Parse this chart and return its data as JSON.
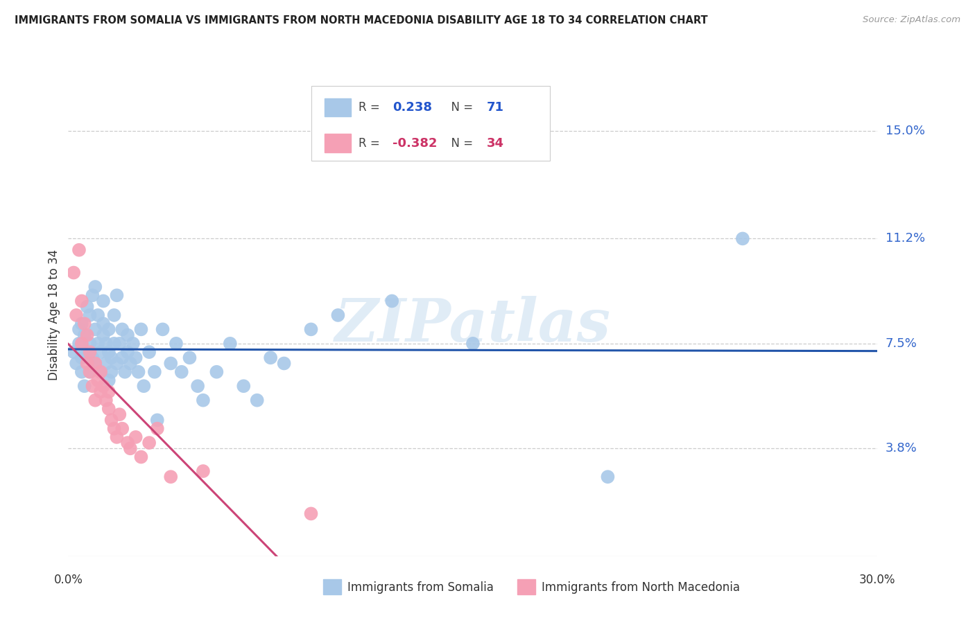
{
  "title": "IMMIGRANTS FROM SOMALIA VS IMMIGRANTS FROM NORTH MACEDONIA DISABILITY AGE 18 TO 34 CORRELATION CHART",
  "source": "Source: ZipAtlas.com",
  "ylabel": "Disability Age 18 to 34",
  "ytick_labels": [
    "15.0%",
    "11.2%",
    "7.5%",
    "3.8%"
  ],
  "ytick_values": [
    0.15,
    0.112,
    0.075,
    0.038
  ],
  "xlim": [
    0.0,
    0.3
  ],
  "ylim": [
    0.0,
    0.17
  ],
  "somalia_R": "0.238",
  "somalia_N": "71",
  "macedonia_R": "-0.382",
  "macedonia_N": "34",
  "somalia_color": "#a8c8e8",
  "somalia_line_color": "#2255aa",
  "macedonia_color": "#f5a0b5",
  "macedonia_line_color": "#cc4477",
  "watermark_text": "ZIPatlas",
  "somalia_points_x": [
    0.002,
    0.003,
    0.004,
    0.004,
    0.005,
    0.005,
    0.005,
    0.006,
    0.006,
    0.007,
    0.007,
    0.008,
    0.008,
    0.008,
    0.009,
    0.009,
    0.01,
    0.01,
    0.01,
    0.011,
    0.011,
    0.012,
    0.012,
    0.013,
    0.013,
    0.013,
    0.014,
    0.014,
    0.015,
    0.015,
    0.015,
    0.016,
    0.016,
    0.017,
    0.017,
    0.018,
    0.018,
    0.019,
    0.02,
    0.02,
    0.021,
    0.022,
    0.022,
    0.023,
    0.024,
    0.025,
    0.026,
    0.027,
    0.028,
    0.03,
    0.032,
    0.033,
    0.035,
    0.038,
    0.04,
    0.042,
    0.045,
    0.048,
    0.05,
    0.055,
    0.06,
    0.065,
    0.07,
    0.075,
    0.08,
    0.09,
    0.1,
    0.12,
    0.15,
    0.2,
    0.25
  ],
  "somalia_points_y": [
    0.072,
    0.068,
    0.075,
    0.08,
    0.065,
    0.07,
    0.082,
    0.06,
    0.078,
    0.088,
    0.072,
    0.075,
    0.065,
    0.085,
    0.07,
    0.092,
    0.068,
    0.08,
    0.095,
    0.075,
    0.085,
    0.072,
    0.065,
    0.078,
    0.082,
    0.09,
    0.068,
    0.075,
    0.062,
    0.072,
    0.08,
    0.07,
    0.065,
    0.075,
    0.085,
    0.068,
    0.092,
    0.075,
    0.07,
    0.08,
    0.065,
    0.072,
    0.078,
    0.068,
    0.075,
    0.07,
    0.065,
    0.08,
    0.06,
    0.072,
    0.065,
    0.048,
    0.08,
    0.068,
    0.075,
    0.065,
    0.07,
    0.06,
    0.055,
    0.065,
    0.075,
    0.06,
    0.055,
    0.07,
    0.068,
    0.08,
    0.085,
    0.09,
    0.075,
    0.028,
    0.112
  ],
  "macedonia_points_x": [
    0.002,
    0.003,
    0.004,
    0.005,
    0.005,
    0.006,
    0.007,
    0.007,
    0.008,
    0.008,
    0.009,
    0.01,
    0.01,
    0.011,
    0.012,
    0.012,
    0.013,
    0.014,
    0.015,
    0.015,
    0.016,
    0.017,
    0.018,
    0.019,
    0.02,
    0.022,
    0.023,
    0.025,
    0.027,
    0.03,
    0.033,
    0.038,
    0.05,
    0.09
  ],
  "macedonia_points_y": [
    0.1,
    0.085,
    0.108,
    0.09,
    0.075,
    0.082,
    0.068,
    0.078,
    0.072,
    0.065,
    0.06,
    0.068,
    0.055,
    0.062,
    0.058,
    0.065,
    0.06,
    0.055,
    0.052,
    0.058,
    0.048,
    0.045,
    0.042,
    0.05,
    0.045,
    0.04,
    0.038,
    0.042,
    0.035,
    0.04,
    0.045,
    0.028,
    0.03,
    0.015
  ]
}
